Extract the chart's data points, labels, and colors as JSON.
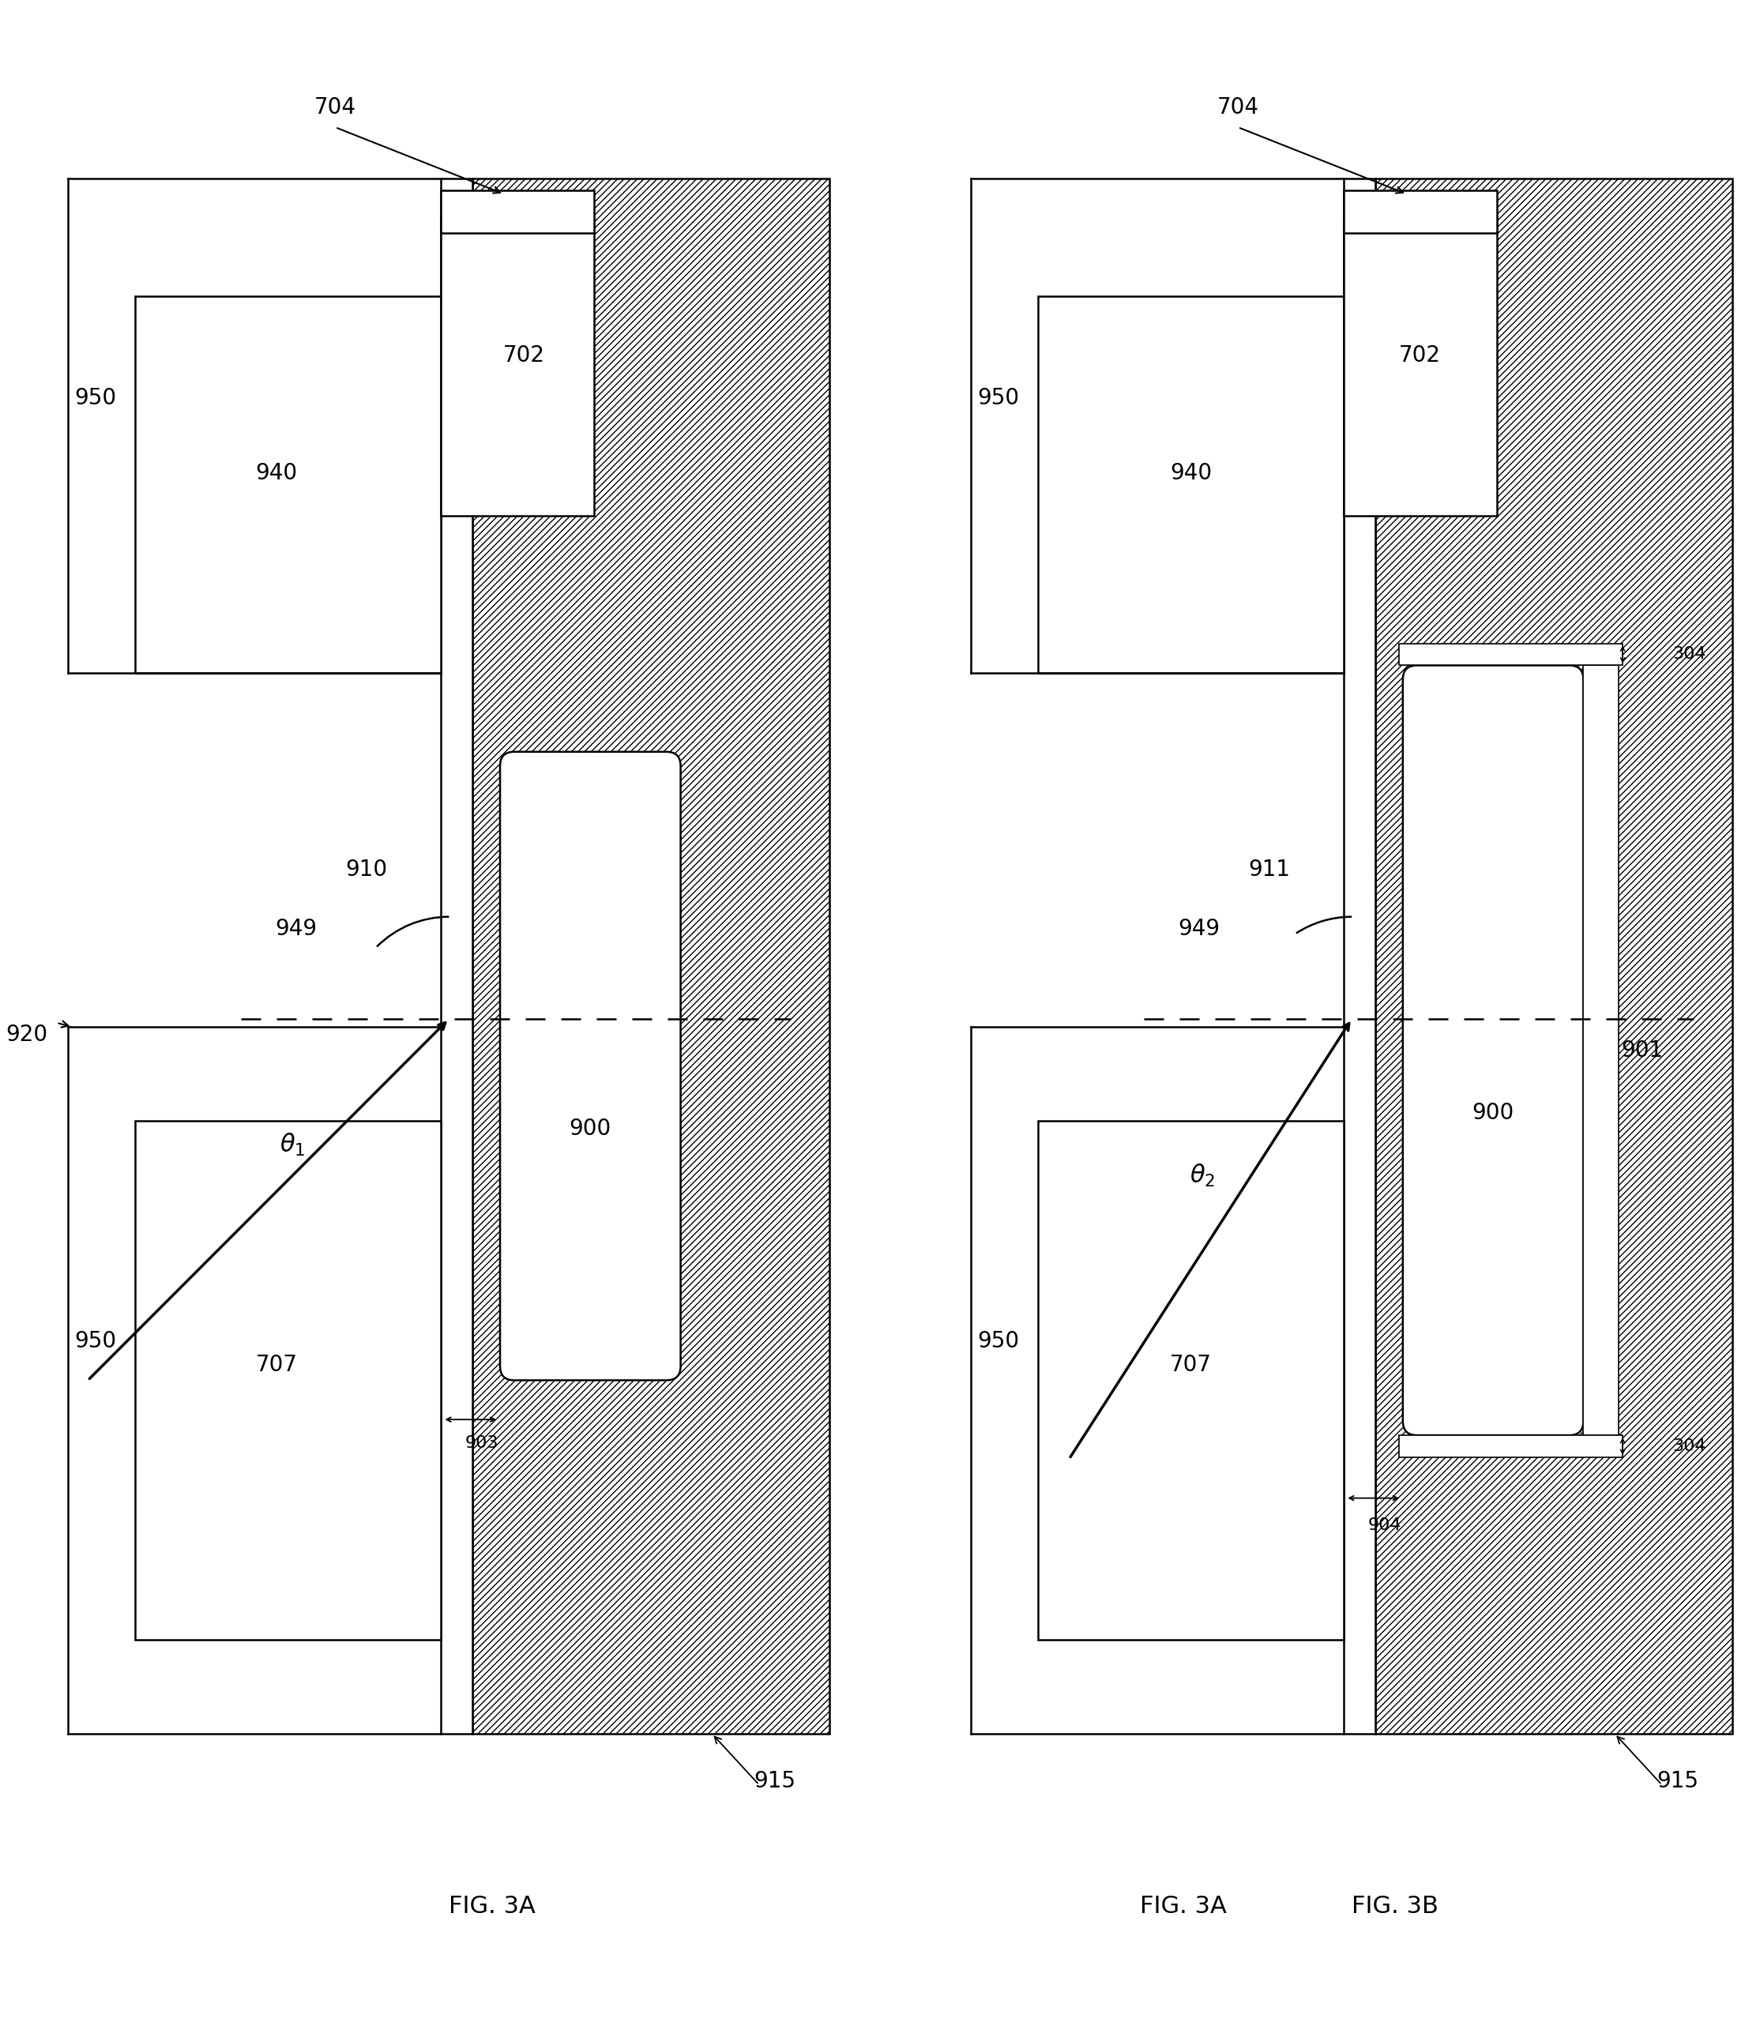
{
  "fig_width": 22.28,
  "fig_height": 25.65,
  "bg_color": "#ffffff",
  "lc": "#000000",
  "lw": 1.8,
  "lw_thin": 1.2,
  "fs_label": 20,
  "fs_fig": 22,
  "diagrams": [
    "FIG. 3A",
    "FIG. 3B"
  ]
}
